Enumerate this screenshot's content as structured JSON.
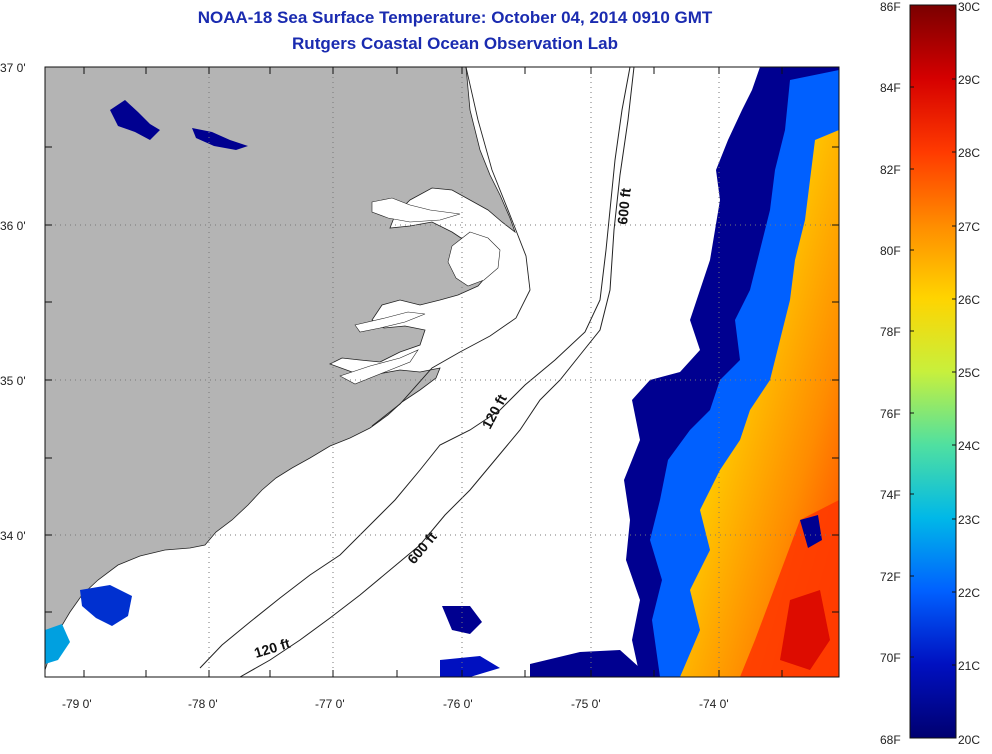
{
  "header": {
    "title": "NOAA-18 Sea Surface Temperature:  October 04, 2014 0910 GMT",
    "subtitle": "Rutgers Coastal Ocean Observation Lab"
  },
  "axes": {
    "lat_labels": [
      "37 0'",
      "36 0'",
      "35 0'",
      "34 0'"
    ],
    "lon_labels": [
      "-79 0'",
      "-78 0'",
      "-77 0'",
      "-76 0'",
      "-75 0'",
      "-74 0'"
    ]
  },
  "isobaths": {
    "shelf_120": "120 ft",
    "shelf_600": "600 ft"
  },
  "colorbar": {
    "fahrenheit": [
      "86F",
      "84F",
      "82F",
      "80F",
      "78F",
      "76F",
      "74F",
      "72F",
      "70F",
      "68F"
    ],
    "celsius": [
      "30C",
      "29C",
      "28C",
      "27C",
      "26C",
      "25C",
      "24C",
      "23C",
      "22C",
      "21C",
      "20C"
    ],
    "colors": [
      "#7a0000",
      "#d50000",
      "#ff3a00",
      "#ff8c00",
      "#ffd400",
      "#c8f03c",
      "#50e0a0",
      "#00b8e8",
      "#0060ff",
      "#0010c0",
      "#000070"
    ]
  },
  "colors": {
    "land": "#b4b4b4",
    "water_nodata": "#ffffff",
    "title": "#1a2bb0",
    "grid": "#777777"
  }
}
